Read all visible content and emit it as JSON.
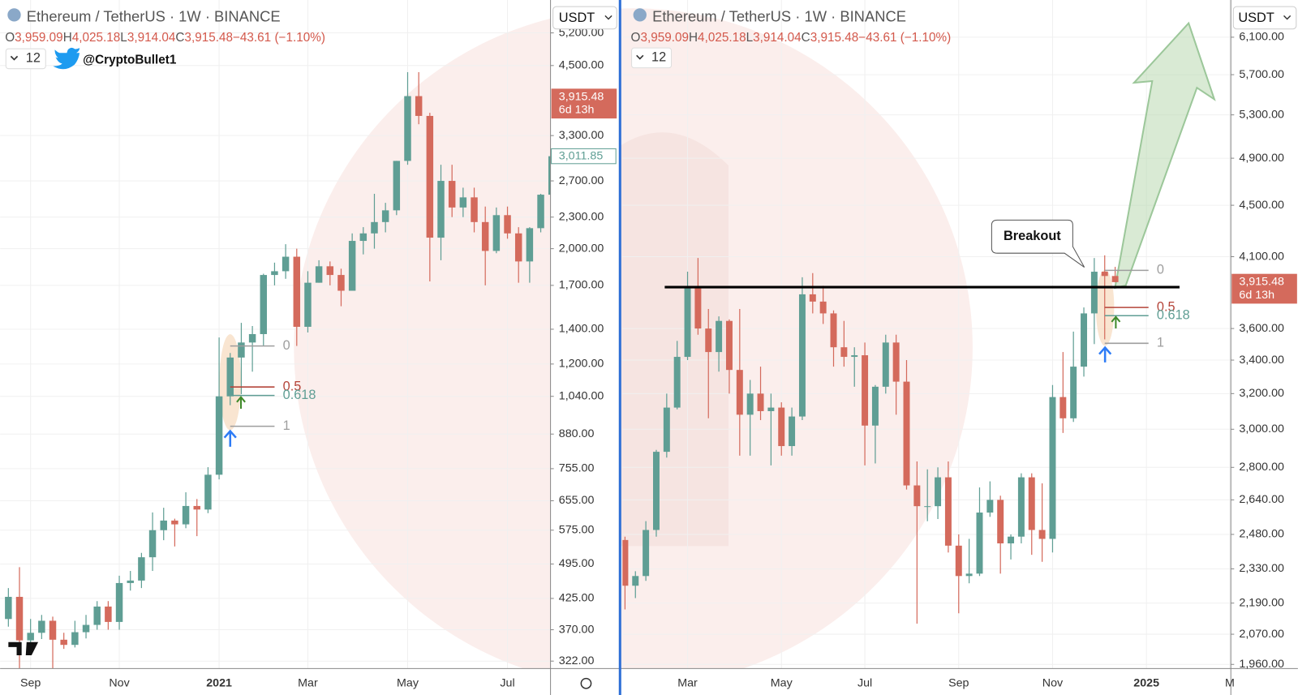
{
  "chart_data": [
    {
      "type": "candlestick",
      "title": "Ethereum / TetherUS · 1W · BINANCE",
      "ohlc": [
        {
          "label": "O",
          "value": "3,959.09"
        },
        {
          "label": "H",
          "value": "4,025.18"
        },
        {
          "label": "L",
          "value": "3,914.04"
        },
        {
          "label": "C",
          "value": "3,915.48"
        }
      ],
      "change": "−43.61 (−1.10%)",
      "interval": "12",
      "author": "@CryptoBullet1",
      "currency": "USDT",
      "categories": [
        null,
        null,
        "Sep",
        null,
        null,
        null,
        null,
        null,
        null,
        null,
        "Nov",
        null,
        null,
        null,
        null,
        null,
        null,
        null,
        null,
        "2021",
        null,
        null,
        null,
        null,
        null,
        null,
        null,
        "Mar",
        null,
        null,
        null,
        null,
        null,
        null,
        null,
        null,
        "May",
        null,
        null,
        null,
        null,
        null,
        null,
        null,
        null,
        "Jul",
        null,
        null,
        null,
        null
      ],
      "open": [
        388,
        428,
        353,
        365,
        385,
        354,
        346,
        366,
        378,
        410,
        383,
        455,
        460,
        510,
        575,
        600,
        590,
        640,
        630,
        735,
        1040,
        1235,
        1320,
        1370,
        1780,
        1810,
        1930,
        1415,
        1720,
        1850,
        1780,
        1660,
        2070,
        2140,
        2250,
        2370,
        2950,
        3930,
        3600,
        2100,
        2700,
        2400,
        2510,
        2250,
        1980,
        2320,
        2140,
        1890,
        2190,
        2540
      ],
      "high": [
        445,
        488,
        388,
        395,
        392,
        365,
        385,
        395,
        420,
        420,
        470,
        480,
        520,
        622,
        635,
        605,
        680,
        660,
        760,
        1350,
        1260,
        1440,
        1420,
        1790,
        1880,
        2040,
        2000,
        1810,
        1900,
        1890,
        1830,
        2140,
        2200,
        2550,
        2450,
        2950,
        4370,
        4370,
        3650,
        2900,
        2900,
        2620,
        2620,
        2410,
        2400,
        2410,
        2200,
        2200,
        2550,
        3200
      ],
      "low": [
        375,
        308,
        332,
        355,
        308,
        340,
        342,
        356,
        370,
        370,
        370,
        440,
        445,
        480,
        550,
        535,
        580,
        560,
        620,
        720,
        1000,
        1050,
        1160,
        1300,
        1700,
        1750,
        1300,
        1380,
        1720,
        1700,
        1550,
        1660,
        1950,
        2000,
        2150,
        2320,
        2900,
        3470,
        1730,
        1900,
        2300,
        2300,
        2150,
        1700,
        1960,
        2090,
        1720,
        1720,
        2150,
        2460
      ],
      "close": [
        428,
        353,
        365,
        385,
        354,
        346,
        366,
        378,
        410,
        383,
        455,
        460,
        510,
        575,
        600,
        590,
        640,
        630,
        735,
        1040,
        1235,
        1320,
        1370,
        1780,
        1810,
        1930,
        1415,
        1720,
        1850,
        1780,
        1660,
        2070,
        2140,
        2250,
        2370,
        2950,
        3930,
        3600,
        2100,
        2700,
        2400,
        2510,
        2250,
        1980,
        2320,
        2140,
        1890,
        2190,
        2540,
        3011.85
      ],
      "up_color": "#5f9e94",
      "down_color": "#d46a5c",
      "log_scale": true,
      "grid": true,
      "ylim": [
        311.6,
        6015
      ],
      "yticks": [
        {
          "value": 322,
          "label": "322.00"
        },
        {
          "value": 370,
          "label": "370.00"
        },
        {
          "value": 425,
          "label": "425.00"
        },
        {
          "value": 495,
          "label": "495.00"
        },
        {
          "value": 575,
          "label": "575.00"
        },
        {
          "value": 655,
          "label": "655.00"
        },
        {
          "value": 755,
          "label": "755.00"
        },
        {
          "value": 880,
          "label": "880.00"
        },
        {
          "value": 1040,
          "label": "1,040.00"
        },
        {
          "value": 1200,
          "label": "1,200.00"
        },
        {
          "value": 1400,
          "label": "1,400.00"
        },
        {
          "value": 1700,
          "label": "1,700.00"
        },
        {
          "value": 2000,
          "label": "2,000.00"
        },
        {
          "value": 2300,
          "label": "2,300.00"
        },
        {
          "value": 2700,
          "label": "2,700.00"
        },
        {
          "value": 3300,
          "label": "3,300.00"
        },
        {
          "value": 4500,
          "label": "4,500.00"
        },
        {
          "value": 5200,
          "label": "5,200.00"
        }
      ],
      "fib_levels": [
        {
          "level": 0,
          "price": 1300,
          "color": "#9e9e9e"
        },
        {
          "level": 0.5,
          "price": 1084,
          "color": "#b5453a"
        },
        {
          "level": 0.618,
          "price": 1044,
          "color": "#5f9e94"
        },
        {
          "level": 1,
          "price": 911,
          "color": "#9e9e9e"
        }
      ],
      "last_price": {
        "value": 3915.48,
        "label": "3,915.48",
        "countdown": "6d 13h"
      },
      "marker_price": {
        "value": 3011.85,
        "label": "3,011.85"
      }
    },
    {
      "type": "candlestick",
      "title": "Ethereum / TetherUS · 1W · BINANCE",
      "ohlc": [
        {
          "label": "O",
          "value": "3,959.09"
        },
        {
          "label": "H",
          "value": "4,025.18"
        },
        {
          "label": "L",
          "value": "3,914.04"
        },
        {
          "label": "C",
          "value": "3,915.48"
        }
      ],
      "change": "−43.61 (−1.10%)",
      "interval": "12",
      "currency": "USDT",
      "categories": [
        null,
        null,
        null,
        null,
        null,
        null,
        "Mar",
        null,
        null,
        null,
        null,
        null,
        null,
        null,
        null,
        "May",
        null,
        null,
        null,
        null,
        null,
        null,
        null,
        "Jul",
        null,
        null,
        null,
        null,
        null,
        null,
        null,
        null,
        "Sep",
        null,
        null,
        null,
        null,
        null,
        null,
        null,
        null,
        "Nov",
        null,
        null,
        null,
        null,
        null,
        null,
        null,
        null,
        "2025",
        null,
        null,
        null,
        null,
        null,
        null,
        null,
        "M"
      ],
      "open": [
        2455,
        2260,
        2300,
        2500,
        2880,
        3120,
        3420,
        3880,
        3600,
        3450,
        3650,
        3340,
        3080,
        3200,
        3100,
        3120,
        2910,
        3070,
        3830,
        3780,
        3700,
        3480,
        3420,
        3430,
        3020,
        3240,
        3510,
        3270,
        2710,
        2610,
        2610,
        2750,
        2430,
        2300,
        2310,
        2580,
        2640,
        2440,
        2470,
        2750,
        2500,
        2460,
        3180,
        3060,
        3360,
        3700,
        3990,
        3959.09,
        null,
        null,
        null,
        null,
        null,
        null,
        null,
        null,
        null,
        null,
        null
      ],
      "high": [
        2470,
        2320,
        2540,
        2890,
        3200,
        3520,
        3990,
        4090,
        3730,
        3680,
        3660,
        3730,
        3280,
        3360,
        3200,
        3150,
        3120,
        3950,
        3980,
        3890,
        3720,
        3650,
        3480,
        3510,
        3250,
        3560,
        3560,
        3400,
        2830,
        2790,
        2800,
        2830,
        2480,
        2460,
        2700,
        2730,
        2660,
        2480,
        2770,
        2770,
        2720,
        3250,
        3450,
        3580,
        3740,
        4090,
        4110,
        4025.18,
        null,
        null,
        null,
        null,
        null,
        null,
        null,
        null,
        null,
        null,
        null
      ],
      "low": [
        2165,
        2210,
        2280,
        2470,
        2850,
        3110,
        3400,
        3560,
        3060,
        3330,
        3200,
        2860,
        2860,
        3050,
        2810,
        2860,
        2860,
        3050,
        3700,
        3630,
        3360,
        3360,
        3240,
        2810,
        2820,
        3200,
        3080,
        2690,
        2110,
        2540,
        2550,
        2400,
        2150,
        2270,
        2300,
        2560,
        2310,
        2370,
        2440,
        2390,
        2360,
        2400,
        2980,
        3040,
        3300,
        3500,
        3530,
        3914.04,
        null,
        null,
        null,
        null,
        null,
        null,
        null,
        null,
        null,
        null,
        null
      ],
      "close": [
        2260,
        2300,
        2500,
        2880,
        3120,
        3420,
        3880,
        3600,
        3450,
        3650,
        3340,
        3080,
        3200,
        3100,
        3120,
        2910,
        3070,
        3830,
        3780,
        3700,
        3480,
        3420,
        3430,
        3020,
        3240,
        3510,
        3270,
        2710,
        2610,
        2610,
        2750,
        2430,
        2300,
        2310,
        2580,
        2640,
        2440,
        2470,
        2750,
        2500,
        2460,
        3180,
        3060,
        3360,
        3700,
        3990,
        3959.09,
        3915.48,
        null,
        null,
        null,
        null,
        null,
        null,
        null,
        null,
        null,
        null,
        null
      ],
      "up_color": "#5f9e94",
      "down_color": "#d46a5c",
      "log_scale": true,
      "grid": true,
      "ylim": [
        1945.4,
        6525
      ],
      "yticks": [
        {
          "value": 1960,
          "label": "1,960.00"
        },
        {
          "value": 2070,
          "label": "2,070.00"
        },
        {
          "value": 2190,
          "label": "2,190.00"
        },
        {
          "value": 2330,
          "label": "2,330.00"
        },
        {
          "value": 2480,
          "label": "2,480.00"
        },
        {
          "value": 2640,
          "label": "2,640.00"
        },
        {
          "value": 2800,
          "label": "2,800.00"
        },
        {
          "value": 3000,
          "label": "3,000.00"
        },
        {
          "value": 3200,
          "label": "3,200.00"
        },
        {
          "value": 3400,
          "label": "3,400.00"
        },
        {
          "value": 3600,
          "label": "3,600.00"
        },
        {
          "value": 4100,
          "label": "4,100.00"
        },
        {
          "value": 4500,
          "label": "4,500.00"
        },
        {
          "value": 4900,
          "label": "4,900.00"
        },
        {
          "value": 5300,
          "label": "5,300.00"
        },
        {
          "value": 5700,
          "label": "5,700.00"
        },
        {
          "value": 6100,
          "label": "6,100.00"
        }
      ],
      "fib_levels": [
        {
          "level": 0,
          "price": 4000,
          "color": "#9e9e9e"
        },
        {
          "level": 0.5,
          "price": 3740,
          "color": "#b5453a"
        },
        {
          "level": 0.618,
          "price": 3685,
          "color": "#5f9e94"
        },
        {
          "level": 1,
          "price": 3505,
          "color": "#9e9e9e"
        }
      ],
      "horizontal_line": {
        "value": 3880,
        "color": "#000000"
      },
      "annotation": "Breakout",
      "last_price": {
        "value": 3915.48,
        "label": "3,915.48",
        "countdown": "6d 13h"
      }
    }
  ]
}
